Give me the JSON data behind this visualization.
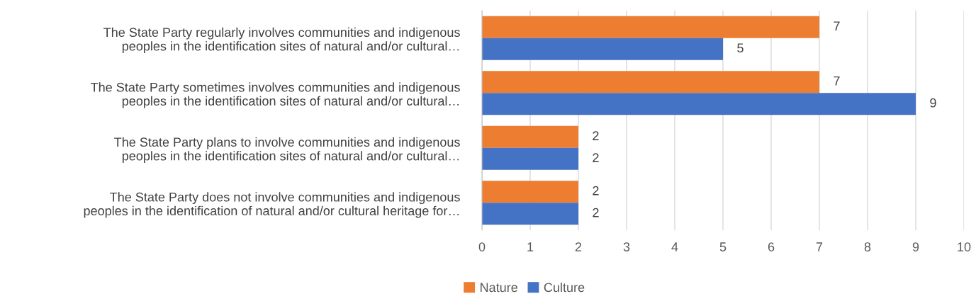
{
  "chart_data": {
    "type": "bar",
    "orientation": "horizontal",
    "categories": [
      "The State Party regularly involves communities and indigenous\npeoples in the identification sites of natural and/or cultural…",
      "The State Party sometimes involves communities and indigenous\npeoples in the identification sites of natural and/or cultural…",
      "The State Party plans to involve communities and indigenous\npeoples in the identification sites of natural and/or cultural…",
      "The State Party does not involve communities and indigenous\npeoples in the identification of natural and/or cultural heritage for…"
    ],
    "series": [
      {
        "name": "Nature",
        "color": "#ed7d31",
        "values": [
          7,
          7,
          2,
          2
        ]
      },
      {
        "name": "Culture",
        "color": "#4472c4",
        "values": [
          5,
          9,
          2,
          2
        ]
      }
    ],
    "xlim": [
      0,
      10
    ],
    "xticks": [
      0,
      1,
      2,
      3,
      4,
      5,
      6,
      7,
      8,
      9,
      10
    ],
    "grid": "x",
    "legend": "bottom",
    "data_labels": true
  }
}
